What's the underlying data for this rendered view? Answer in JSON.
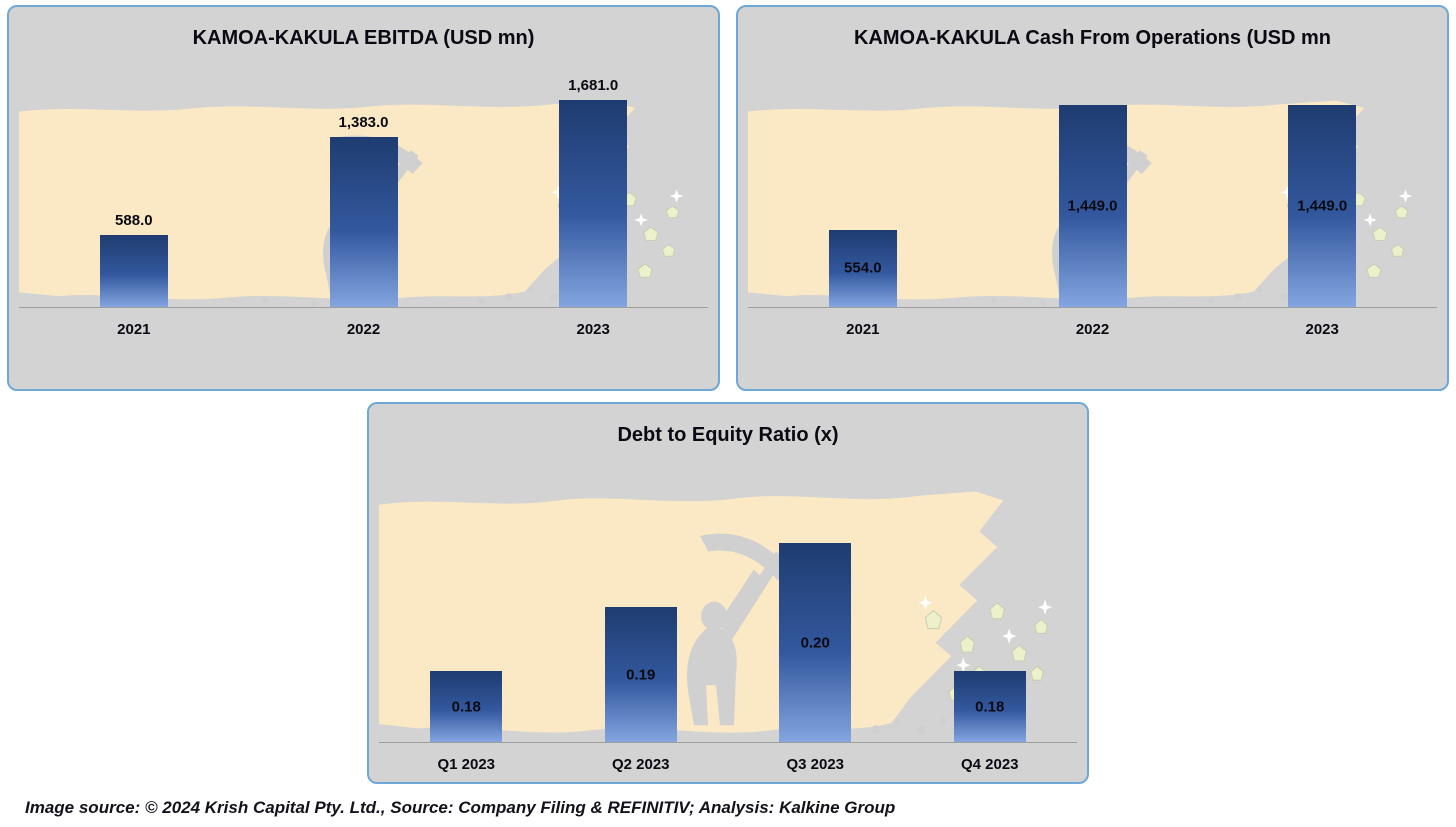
{
  "colors": {
    "bar_gradient_top": "#1e3c70",
    "bar_gradient_mid": "#33589e",
    "bar_gradient_bottom": "#83a5e0",
    "panel_background": "#d3d3d3",
    "panel_border": "#6fa8d6",
    "illustration_cream": "#fbe9c6",
    "gem_fill": "#ecf1cb",
    "text_color": "#0a0a12"
  },
  "chart_data": [
    {
      "id": "kamoa-kakula-ebitda",
      "type": "bar",
      "title": "KAMOA-KAKULA EBITDA (USD mn)",
      "categories": [
        "2021",
        "2022",
        "2023"
      ],
      "values": [
        588.0,
        1383.0,
        1681.0
      ],
      "value_labels": [
        "588.0",
        "1,383.0",
        "1,681.0"
      ],
      "label_position": "above",
      "xlabel": "",
      "ylabel": "",
      "ylim": [
        0,
        1700
      ],
      "grid": false,
      "legend": false
    },
    {
      "id": "kamoa-kakula-cash-from-operations",
      "type": "bar",
      "title": "KAMOA-KAKULA Cash From Operations (USD mn",
      "categories": [
        "2021",
        "2022",
        "2023"
      ],
      "values": [
        554.0,
        1449.0,
        1449.0
      ],
      "value_labels": [
        "554.0",
        "1,449.0",
        "1,449.0"
      ],
      "label_position": "inside",
      "xlabel": "",
      "ylabel": "",
      "ylim": [
        0,
        1500
      ],
      "grid": false,
      "legend": false
    },
    {
      "id": "debt-to-equity-ratio",
      "type": "bar",
      "title": "Debt to Equity Ratio (x)",
      "categories": [
        "Q1 2023",
        "Q2 2023",
        "Q3 2023",
        "Q4 2023"
      ],
      "values": [
        0.18,
        0.19,
        0.2,
        0.18
      ],
      "value_labels": [
        "0.18",
        "0.19",
        "0.20",
        "0.18"
      ],
      "label_position": "inside",
      "xlabel": "",
      "ylabel": "",
      "ylim": [
        0.169,
        0.2
      ],
      "grid": false,
      "legend": false
    }
  ],
  "footer": {
    "source_text": "Image source: © 2024 Krish Capital Pty. Ltd., Source: Company Filing & REFINITIV; Analysis: Kalkine Group"
  }
}
